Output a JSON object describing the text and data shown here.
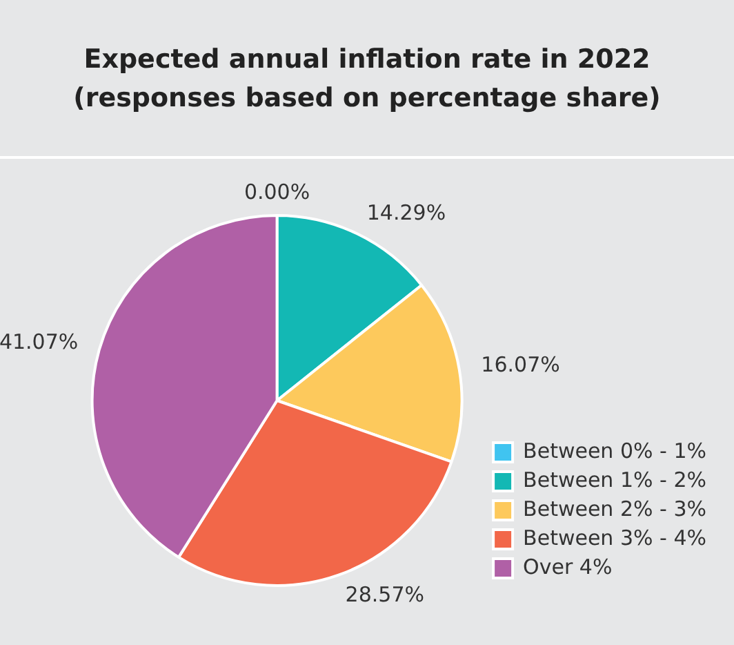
{
  "chart_data": {
    "type": "pie",
    "title": "Expected annual inflation rate in 2022\n(responses based on percentage share)",
    "categories": [
      "Between 0% - 1%",
      "Between 1% - 2%",
      "Between 2% - 3%",
      "Between 3% - 4%",
      "Over 4%"
    ],
    "values": [
      0,
      14.29,
      16.07,
      28.57,
      41.07
    ],
    "colors": [
      "#40c4f0",
      "#13b8b4",
      "#fdc95c",
      "#f26749",
      "#b060a6"
    ],
    "value_labels": [
      "0.00%",
      "14.29%",
      "16.07%",
      "28.57%",
      "41.07%"
    ],
    "legend": "right"
  }
}
